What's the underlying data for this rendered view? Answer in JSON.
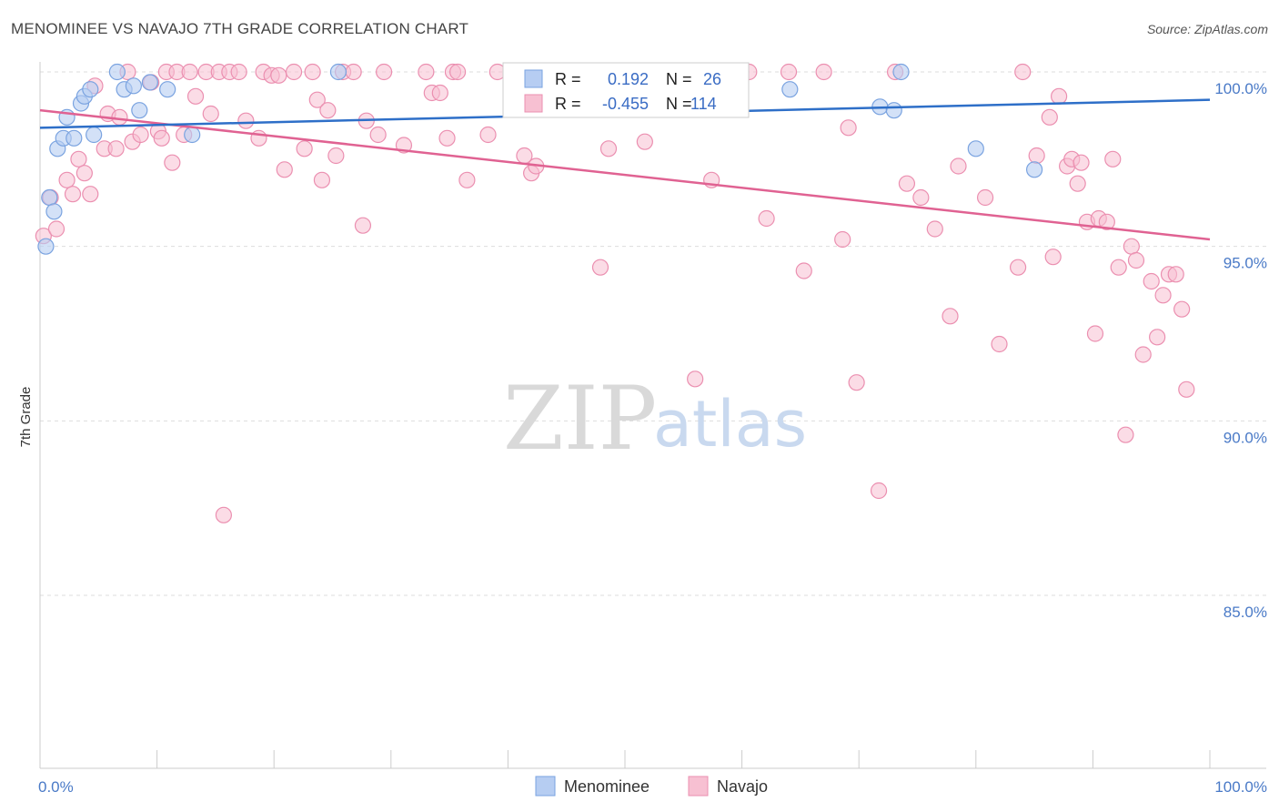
{
  "title": "MENOMINEE VS NAVAJO 7TH GRADE CORRELATION CHART",
  "source": "Source: ZipAtlas.com",
  "watermark": {
    "part1": "ZIP",
    "part2": "atlas"
  },
  "legend": {
    "rows": [
      {
        "r_label": "R =",
        "r_value": "0.192",
        "n_label": "N =",
        "n_value": "26"
      },
      {
        "r_label": "R =",
        "r_value": "-0.455",
        "n_label": "N =",
        "n_value": "114"
      }
    ]
  },
  "bottom_legend": {
    "series1": "Menominee",
    "series2": "Navajo"
  },
  "colors": {
    "menominee_fill": "#b6cdf2",
    "menominee_stroke": "#7aa3e0",
    "menominee_line": "#2e6fc8",
    "navajo_fill": "#f7c0d2",
    "navajo_stroke": "#eb8fb0",
    "navajo_line": "#e06292",
    "grid": "#dddddd",
    "tick_text": "#4a7ac7"
  },
  "chart_data": {
    "type": "scatter",
    "xlabel": "",
    "ylabel": "7th Grade",
    "xlim": [
      0,
      100
    ],
    "ylim": [
      80.5,
      100.5
    ],
    "x_tick_labels": [
      "0.0%",
      "100.0%"
    ],
    "y_ticks": [
      {
        "value": 100,
        "label": "100.0%"
      },
      {
        "value": 95,
        "label": "95.0%"
      },
      {
        "value": 90,
        "label": "90.0%"
      },
      {
        "value": 85,
        "label": "85.0%"
      }
    ],
    "grid": true,
    "series": [
      {
        "name": "Menominee",
        "trend": {
          "x0": 0,
          "y0": 98.4,
          "x1": 100,
          "y1": 99.2
        },
        "points": [
          [
            0.5,
            95.0
          ],
          [
            0.8,
            96.4
          ],
          [
            1.2,
            96.0
          ],
          [
            1.5,
            97.8
          ],
          [
            2.0,
            98.1
          ],
          [
            2.3,
            98.7
          ],
          [
            2.9,
            98.1
          ],
          [
            3.5,
            99.1
          ],
          [
            3.8,
            99.3
          ],
          [
            4.3,
            99.5
          ],
          [
            4.6,
            98.2
          ],
          [
            6.6,
            100.0
          ],
          [
            7.2,
            99.5
          ],
          [
            8.0,
            99.6
          ],
          [
            8.5,
            98.9
          ],
          [
            9.4,
            99.7
          ],
          [
            10.9,
            99.5
          ],
          [
            13.0,
            98.2
          ],
          [
            25.5,
            100.0
          ],
          [
            58.5,
            100.0
          ],
          [
            64.1,
            99.5
          ],
          [
            71.8,
            99.0
          ],
          [
            73.0,
            98.9
          ],
          [
            73.6,
            100.0
          ],
          [
            80.0,
            97.8
          ],
          [
            85.0,
            97.2
          ]
        ]
      },
      {
        "name": "Navajo",
        "trend": {
          "x0": 0,
          "y0": 98.9,
          "x1": 100,
          "y1": 95.2
        },
        "points": [
          [
            0.3,
            95.3
          ],
          [
            0.9,
            96.4
          ],
          [
            1.4,
            95.5
          ],
          [
            2.3,
            96.9
          ],
          [
            2.8,
            96.5
          ],
          [
            3.3,
            97.5
          ],
          [
            3.8,
            97.1
          ],
          [
            4.3,
            96.5
          ],
          [
            4.7,
            99.6
          ],
          [
            5.5,
            97.8
          ],
          [
            5.8,
            98.8
          ],
          [
            6.5,
            97.8
          ],
          [
            6.8,
            98.7
          ],
          [
            7.5,
            100.0
          ],
          [
            7.9,
            98.0
          ],
          [
            8.6,
            98.2
          ],
          [
            9.5,
            99.7
          ],
          [
            10.1,
            98.3
          ],
          [
            10.4,
            98.1
          ],
          [
            10.8,
            100.0
          ],
          [
            11.3,
            97.4
          ],
          [
            11.7,
            100.0
          ],
          [
            12.3,
            98.2
          ],
          [
            12.8,
            100.0
          ],
          [
            13.3,
            99.3
          ],
          [
            14.2,
            100.0
          ],
          [
            14.6,
            98.8
          ],
          [
            15.3,
            100.0
          ],
          [
            15.7,
            87.3
          ],
          [
            16.2,
            100.0
          ],
          [
            17.0,
            100.0
          ],
          [
            17.6,
            98.6
          ],
          [
            18.7,
            98.1
          ],
          [
            19.1,
            100.0
          ],
          [
            19.8,
            99.9
          ],
          [
            20.4,
            99.9
          ],
          [
            20.9,
            97.2
          ],
          [
            21.7,
            100.0
          ],
          [
            22.6,
            97.8
          ],
          [
            23.3,
            100.0
          ],
          [
            23.7,
            99.2
          ],
          [
            24.1,
            96.9
          ],
          [
            24.6,
            98.9
          ],
          [
            25.3,
            97.6
          ],
          [
            25.9,
            100.0
          ],
          [
            26.8,
            100.0
          ],
          [
            27.6,
            95.6
          ],
          [
            27.9,
            98.6
          ],
          [
            28.9,
            98.2
          ],
          [
            29.4,
            100.0
          ],
          [
            31.1,
            97.9
          ],
          [
            33.0,
            100.0
          ],
          [
            33.5,
            99.4
          ],
          [
            34.2,
            99.4
          ],
          [
            34.8,
            98.1
          ],
          [
            35.3,
            100.0
          ],
          [
            35.7,
            100.0
          ],
          [
            36.5,
            96.9
          ],
          [
            38.3,
            98.2
          ],
          [
            39.1,
            100.0
          ],
          [
            41.4,
            97.6
          ],
          [
            42.0,
            97.1
          ],
          [
            42.4,
            97.3
          ],
          [
            45.8,
            100.0
          ],
          [
            47.9,
            94.4
          ],
          [
            48.6,
            97.8
          ],
          [
            49.6,
            100.0
          ],
          [
            51.7,
            98.0
          ],
          [
            54.6,
            100.0
          ],
          [
            56.0,
            91.2
          ],
          [
            56.8,
            100.0
          ],
          [
            57.4,
            96.9
          ],
          [
            59.8,
            100.0
          ],
          [
            60.6,
            100.0
          ],
          [
            62.1,
            95.8
          ],
          [
            64.0,
            100.0
          ],
          [
            65.3,
            94.3
          ],
          [
            67.0,
            100.0
          ],
          [
            68.6,
            95.2
          ],
          [
            69.1,
            98.4
          ],
          [
            69.8,
            91.1
          ],
          [
            71.7,
            88.0
          ],
          [
            73.1,
            100.0
          ],
          [
            74.1,
            96.8
          ],
          [
            75.3,
            96.4
          ],
          [
            76.5,
            95.5
          ],
          [
            77.8,
            93.0
          ],
          [
            78.5,
            97.3
          ],
          [
            80.8,
            96.4
          ],
          [
            82.0,
            92.2
          ],
          [
            83.6,
            94.4
          ],
          [
            84.0,
            100.0
          ],
          [
            85.2,
            97.6
          ],
          [
            86.3,
            98.7
          ],
          [
            86.6,
            94.7
          ],
          [
            87.1,
            99.3
          ],
          [
            87.8,
            97.3
          ],
          [
            88.2,
            97.5
          ],
          [
            88.7,
            96.8
          ],
          [
            89.0,
            97.4
          ],
          [
            89.5,
            95.7
          ],
          [
            90.2,
            92.5
          ],
          [
            90.5,
            95.8
          ],
          [
            91.2,
            95.7
          ],
          [
            91.7,
            97.5
          ],
          [
            92.2,
            94.4
          ],
          [
            92.8,
            89.6
          ],
          [
            93.3,
            95.0
          ],
          [
            93.7,
            94.6
          ],
          [
            94.3,
            91.9
          ],
          [
            95.0,
            94.0
          ],
          [
            95.5,
            92.4
          ],
          [
            96.0,
            93.6
          ],
          [
            96.5,
            94.2
          ],
          [
            97.1,
            94.2
          ],
          [
            97.6,
            93.2
          ],
          [
            98.0,
            90.9
          ]
        ]
      }
    ]
  }
}
